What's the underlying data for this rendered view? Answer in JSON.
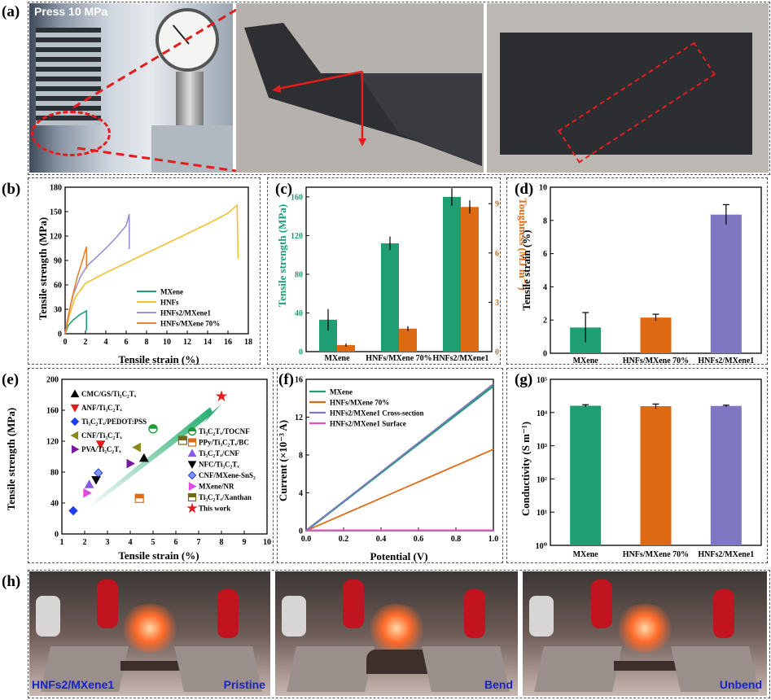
{
  "panels": {
    "a": "(a)",
    "b": "(b)",
    "c": "(c)",
    "d": "(d)",
    "e": "(e)",
    "f": "(f)",
    "g": "(g)",
    "h": "(h)"
  },
  "photo_a": {
    "label": "Press 10 MPa"
  },
  "photo_h": {
    "sample": "HNFs2/MXene1",
    "states": [
      "Pristine",
      "Bend",
      "Unbend"
    ]
  },
  "colors": {
    "green": "#1f9e74",
    "orange": "#de6a13",
    "purple": "#7f77c1",
    "yellow": "#f0c231",
    "lavender": "#9f8ed8",
    "peach": "#ec8230",
    "pink": "#e64ecb",
    "arrow_red": "#e41c1c",
    "caption_blue": "#1a23c8"
  },
  "chart_data": [
    {
      "panel": "b",
      "type": "line",
      "xlabel": "Tensile strain (%)",
      "ylabel": "Tensile strength (MPa)",
      "xlim": [
        0,
        18
      ],
      "ylim": [
        0,
        180
      ],
      "xticks": [
        0,
        2,
        4,
        6,
        8,
        10,
        12,
        14,
        16,
        18
      ],
      "yticks": [
        0,
        30,
        60,
        90,
        120,
        150,
        180
      ],
      "legend_position": "bottom-center",
      "series": [
        {
          "name": "MXene",
          "x": [
            0,
            0.3,
            0.8,
            1.5,
            2.1,
            2.1
          ],
          "y": [
            0,
            10,
            17,
            24,
            28,
            4
          ]
        },
        {
          "name": "HNFs",
          "x": [
            0,
            0.4,
            1,
            2,
            4,
            6,
            8,
            10,
            12,
            14,
            16,
            16.9,
            17
          ],
          "y": [
            0,
            22,
            45,
            62,
            75,
            87,
            99,
            111,
            123,
            135,
            148,
            158,
            92
          ]
        },
        {
          "name": "HNFs2/MXene1",
          "x": [
            0,
            0.3,
            0.8,
            1.5,
            2.2,
            3,
            4,
            5,
            6,
            6.3,
            6.3
          ],
          "y": [
            0,
            22,
            48,
            70,
            84,
            93,
            105,
            118,
            133,
            147,
            104
          ]
        },
        {
          "name": "HNFs/MXene 70%",
          "x": [
            0,
            0.3,
            0.7,
            1.2,
            1.7,
            2.1,
            2.1
          ],
          "y": [
            0,
            20,
            45,
            70,
            90,
            107,
            80
          ]
        }
      ]
    },
    {
      "panel": "c",
      "type": "bar",
      "categories": [
        "MXene",
        "HNFs/MXene 70%",
        "HNFs2/MXene1"
      ],
      "ylabel": "Tensile strength (MPa)",
      "ylabel_right": "Toughness (MJ m⁻³)",
      "ylim": [
        0,
        170
      ],
      "ylim_right": [
        0,
        10
      ],
      "yticks": [
        0,
        40,
        80,
        120,
        160
      ],
      "yticks_right": [
        0,
        3,
        6,
        9
      ],
      "series": [
        {
          "name": "Tensile strength",
          "axis": "left",
          "values": [
            33,
            112,
            160
          ],
          "errors": [
            11,
            7,
            9
          ]
        },
        {
          "name": "Toughness",
          "axis": "right",
          "values": [
            0.4,
            1.4,
            8.8
          ],
          "errors": [
            0.1,
            0.15,
            0.4
          ]
        }
      ]
    },
    {
      "panel": "d",
      "type": "bar",
      "categories": [
        "MXene",
        "HNFs/MXene 70%",
        "HNFs2/MXene1"
      ],
      "ylabel": "Tensile strain (%)",
      "ylim": [
        0,
        10
      ],
      "yticks": [
        0,
        2,
        4,
        6,
        8,
        10
      ],
      "values": [
        1.55,
        2.15,
        8.35
      ],
      "errors": [
        0.9,
        0.2,
        0.6
      ]
    },
    {
      "panel": "e",
      "type": "scatter",
      "xlabel": "Tensile strain (%)",
      "ylabel": "Tensile strength (MPa)",
      "xlim": [
        1,
        10
      ],
      "ylim": [
        0,
        200
      ],
      "xticks": [
        1,
        2,
        3,
        4,
        5,
        6,
        7,
        8,
        9,
        10
      ],
      "yticks": [
        0,
        40,
        80,
        120,
        160,
        200
      ],
      "series": [
        {
          "name": "CMC/GS/Ti₃C₂Tₓ",
          "x": [
            4.6
          ],
          "y": [
            98
          ]
        },
        {
          "name": "ANF/Ti₃C₂Tₓ",
          "x": [
            2.7
          ],
          "y": [
            116
          ]
        },
        {
          "name": "Ti₃C₂Tₓ/PEDOT:PSS",
          "x": [
            1.5
          ],
          "y": [
            30
          ]
        },
        {
          "name": "CNF/Ti₃C₂Tₓ",
          "x": [
            4.3
          ],
          "y": [
            112
          ]
        },
        {
          "name": "PVA/Ti₃C₂Tₓ",
          "x": [
            4.0
          ],
          "y": [
            91
          ]
        },
        {
          "name": "Ti₃C₂Tₓ/TOCNF",
          "x": [
            5.0
          ],
          "y": [
            136
          ]
        },
        {
          "name": "PPy/Ti₃C₂Tₓ/BC",
          "x": [
            4.4
          ],
          "y": [
            46
          ]
        },
        {
          "name": "Ti₃C₂Tₓ/CNF",
          "x": [
            2.2
          ],
          "y": [
            64
          ]
        },
        {
          "name": "NFC/Ti₃C₂Tₓ",
          "x": [
            2.5
          ],
          "y": [
            70
          ]
        },
        {
          "name": "CNF/MXene-SnS₂",
          "x": [
            2.6
          ],
          "y": [
            79
          ]
        },
        {
          "name": "MXene/NR",
          "x": [
            2.1
          ],
          "y": [
            53
          ]
        },
        {
          "name": "Ti₃C₂Tₓ/Xanthan",
          "x": [
            6.3
          ],
          "y": [
            121
          ]
        },
        {
          "name": "This work",
          "x": [
            8.0
          ],
          "y": [
            178
          ]
        }
      ]
    },
    {
      "panel": "f",
      "type": "line",
      "xlabel": "Potential (V)",
      "ylabel": "Current (×10⁻³ A)",
      "xlim": [
        0,
        1.0
      ],
      "ylim": [
        0,
        16
      ],
      "xticks": [
        0.0,
        0.2,
        0.4,
        0.6,
        0.8,
        1.0
      ],
      "yticks": [
        0,
        4,
        8,
        12,
        16
      ],
      "series": [
        {
          "name": "MXene",
          "x": [
            0,
            1.0
          ],
          "y": [
            0,
            15.3
          ]
        },
        {
          "name": "HNFs/MXene 70%",
          "x": [
            0,
            1.0
          ],
          "y": [
            0,
            8.6
          ]
        },
        {
          "name": "HNFs2/MXene1 Cross-section",
          "x": [
            0,
            1.0
          ],
          "y": [
            0,
            15.5
          ]
        },
        {
          "name": "HNFs2/MXene1 Surface",
          "x": [
            0,
            1.0
          ],
          "y": [
            0.05,
            0.05
          ]
        }
      ]
    },
    {
      "panel": "g",
      "type": "bar",
      "categories": [
        "MXene",
        "HNFs/MXene 70%",
        "HNFs2/MXene1"
      ],
      "ylabel": "Conductivity (S m⁻¹)",
      "yscale": "log",
      "ylim": [
        1,
        100000
      ],
      "ytick_labels": [
        "10⁰",
        "10¹",
        "10²",
        "10³",
        "10⁴",
        "10⁵"
      ],
      "values": [
        16000,
        15500,
        15800
      ],
      "errors": [
        1200,
        2500,
        800
      ]
    }
  ]
}
